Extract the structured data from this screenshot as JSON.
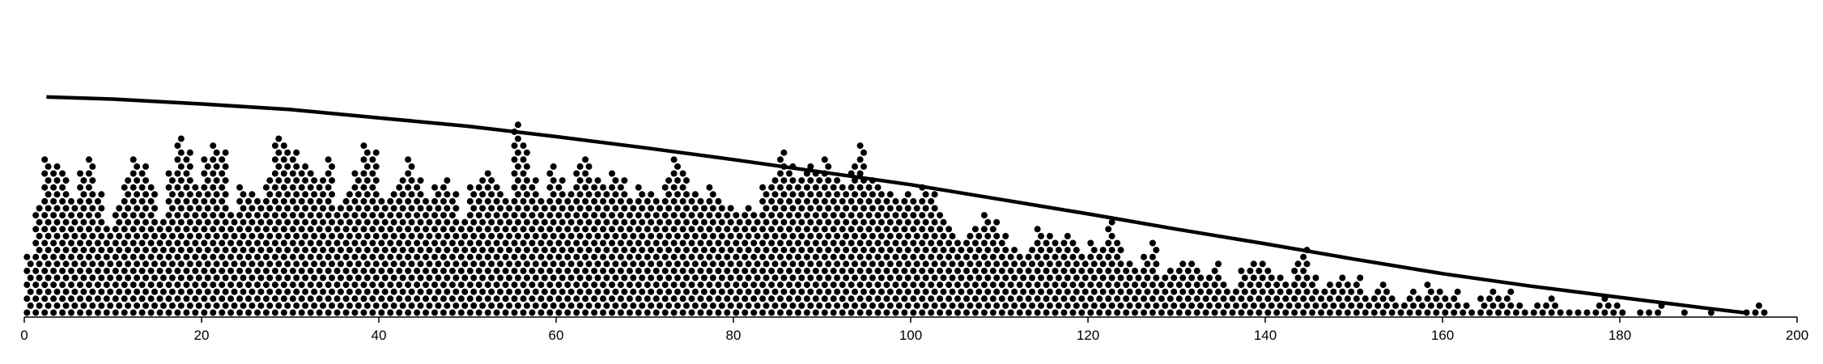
{
  "chart_data": {
    "type": "scatter",
    "title": "",
    "xlabel": "",
    "ylabel": "",
    "xlim": [
      0,
      200
    ],
    "grid": false,
    "legend": "none",
    "x_ticks": [
      "0",
      "20",
      "40",
      "60",
      "80",
      "100",
      "120",
      "140",
      "160",
      "180",
      "200"
    ],
    "x_tick_values": [
      0,
      20,
      40,
      60,
      80,
      100,
      120,
      140,
      160,
      180,
      200
    ],
    "series": [
      {
        "style": "stacked-dots",
        "color": "#000000",
        "column_heights": [
          [
            0.5,
            9
          ],
          [
            1.5,
            16
          ],
          [
            2.5,
            23
          ],
          [
            3.5,
            22
          ],
          [
            4.5,
            21
          ],
          [
            5.5,
            17
          ],
          [
            6.5,
            21
          ],
          [
            7.5,
            23
          ],
          [
            8.5,
            18
          ],
          [
            9.5,
            13
          ],
          [
            10.5,
            16
          ],
          [
            11.5,
            20
          ],
          [
            12.5,
            23
          ],
          [
            13.5,
            22
          ],
          [
            14.5,
            19
          ],
          [
            15.5,
            14
          ],
          [
            16.5,
            21
          ],
          [
            17.5,
            26
          ],
          [
            18.5,
            24
          ],
          [
            19.5,
            19
          ],
          [
            20.5,
            23
          ],
          [
            21.5,
            25
          ],
          [
            22.5,
            24
          ],
          [
            23.5,
            15
          ],
          [
            24.5,
            19
          ],
          [
            25.5,
            18
          ],
          [
            26.5,
            17
          ],
          [
            27.5,
            20
          ],
          [
            28.5,
            26
          ],
          [
            29.5,
            25
          ],
          [
            30.5,
            24
          ],
          [
            31.5,
            22
          ],
          [
            32.5,
            21
          ],
          [
            33.5,
            20
          ],
          [
            34.5,
            23
          ],
          [
            35.5,
            16
          ],
          [
            36.5,
            18
          ],
          [
            37.5,
            21
          ],
          [
            38.5,
            25
          ],
          [
            39.5,
            24
          ],
          [
            40.5,
            17
          ],
          [
            41.5,
            18
          ],
          [
            42.5,
            20
          ],
          [
            43.5,
            23
          ],
          [
            44.5,
            20
          ],
          [
            45.5,
            17
          ],
          [
            46.5,
            19
          ],
          [
            47.5,
            20
          ],
          [
            48.5,
            18
          ],
          [
            49.5,
            14
          ],
          [
            50.5,
            19
          ],
          [
            51.5,
            20
          ],
          [
            52.5,
            21
          ],
          [
            53.5,
            19
          ],
          [
            54.5,
            17
          ],
          [
            55.5,
            28
          ],
          [
            56.5,
            25
          ],
          [
            57.5,
            20
          ],
          [
            58.5,
            17
          ],
          [
            59.5,
            22
          ],
          [
            60.5,
            20
          ],
          [
            61.5,
            18
          ],
          [
            62.5,
            22
          ],
          [
            63.5,
            23
          ],
          [
            64.5,
            20
          ],
          [
            65.5,
            19
          ],
          [
            66.5,
            21
          ],
          [
            67.5,
            20
          ],
          [
            68.5,
            17
          ],
          [
            69.5,
            19
          ],
          [
            70.5,
            18
          ],
          [
            71.5,
            17
          ],
          [
            72.5,
            20
          ],
          [
            73.5,
            23
          ],
          [
            74.5,
            21
          ],
          [
            75.5,
            18
          ],
          [
            76.5,
            17
          ],
          [
            77.5,
            19
          ],
          [
            78.5,
            17
          ],
          [
            79.5,
            16
          ],
          [
            80.5,
            15
          ],
          [
            81.5,
            16
          ],
          [
            82.5,
            15
          ],
          [
            83.5,
            19
          ],
          [
            84.5,
            20
          ],
          [
            85.5,
            24
          ],
          [
            86.5,
            22
          ],
          [
            87.5,
            20
          ],
          [
            88.5,
            22
          ],
          [
            89.5,
            21
          ],
          [
            90.5,
            23
          ],
          [
            91.5,
            20
          ],
          [
            92.5,
            19
          ],
          [
            93.5,
            22
          ],
          [
            94.5,
            25
          ],
          [
            95.5,
            20
          ],
          [
            96.5,
            19
          ],
          [
            97.5,
            18
          ],
          [
            98.5,
            17
          ],
          [
            99.5,
            18
          ],
          [
            100.5,
            17
          ],
          [
            101.5,
            19
          ],
          [
            102.5,
            18
          ],
          [
            103.5,
            15
          ],
          [
            104.5,
            13
          ],
          [
            105.5,
            11
          ],
          [
            106.5,
            12
          ],
          [
            107.5,
            13
          ],
          [
            108.5,
            15
          ],
          [
            109.5,
            14
          ],
          [
            110.5,
            12
          ],
          [
            111.5,
            10
          ],
          [
            112.5,
            9
          ],
          [
            113.5,
            10
          ],
          [
            114.5,
            13
          ],
          [
            115.5,
            12
          ],
          [
            116.5,
            11
          ],
          [
            117.5,
            12
          ],
          [
            118.5,
            11
          ],
          [
            119.5,
            9
          ],
          [
            120.5,
            11
          ],
          [
            121.5,
            10
          ],
          [
            122.5,
            14
          ],
          [
            123.5,
            11
          ],
          [
            124.5,
            8
          ],
          [
            125.5,
            7
          ],
          [
            126.5,
            9
          ],
          [
            127.5,
            11
          ],
          [
            128.5,
            6
          ],
          [
            129.5,
            7
          ],
          [
            130.5,
            8
          ],
          [
            131.5,
            8
          ],
          [
            132.5,
            7
          ],
          [
            133.5,
            6
          ],
          [
            134.5,
            8
          ],
          [
            135.5,
            5
          ],
          [
            136.5,
            4
          ],
          [
            137.5,
            7
          ],
          [
            138.5,
            8
          ],
          [
            139.5,
            8
          ],
          [
            140.5,
            7
          ],
          [
            141.5,
            6
          ],
          [
            142.5,
            5
          ],
          [
            143.5,
            8
          ],
          [
            144.5,
            10
          ],
          [
            145.5,
            6
          ],
          [
            146.5,
            4
          ],
          [
            147.5,
            5
          ],
          [
            148.5,
            6
          ],
          [
            149.5,
            5
          ],
          [
            150.5,
            6
          ],
          [
            151.5,
            3
          ],
          [
            152.5,
            4
          ],
          [
            153.5,
            5
          ],
          [
            154.5,
            3
          ],
          [
            155.5,
            2
          ],
          [
            156.5,
            4
          ],
          [
            157.5,
            3
          ],
          [
            158.5,
            5
          ],
          [
            159.5,
            4
          ],
          [
            160.5,
            3
          ],
          [
            161.5,
            4
          ],
          [
            162.5,
            2
          ],
          [
            163.5,
            1
          ],
          [
            164.5,
            3
          ],
          [
            165.5,
            4
          ],
          [
            166.5,
            3
          ],
          [
            167.5,
            4
          ],
          [
            168.5,
            2
          ],
          [
            169.5,
            1
          ],
          [
            170.5,
            2
          ],
          [
            171.5,
            2
          ],
          [
            172.5,
            3
          ],
          [
            173.5,
            1
          ],
          [
            174.5,
            1
          ],
          [
            175.5,
            1
          ],
          [
            176.5,
            1
          ],
          [
            177.5,
            2
          ],
          [
            178.5,
            3
          ],
          [
            179.5,
            2
          ],
          [
            180.5,
            1
          ],
          [
            181.5,
            0
          ],
          [
            182.5,
            1
          ],
          [
            183.5,
            1
          ],
          [
            184.5,
            2
          ],
          [
            185.5,
            0
          ],
          [
            186.5,
            0
          ],
          [
            187.5,
            1
          ],
          [
            188.5,
            0
          ],
          [
            189.5,
            0
          ],
          [
            190.5,
            1
          ],
          [
            191.5,
            0
          ],
          [
            192.5,
            0
          ],
          [
            193.5,
            0
          ],
          [
            194.5,
            1
          ],
          [
            195.5,
            2
          ],
          [
            196.5,
            1
          ]
        ]
      },
      {
        "style": "line",
        "color": "#000000",
        "points": [
          [
            2.5,
            31
          ],
          [
            10,
            30.7
          ],
          [
            20,
            30
          ],
          [
            30,
            29.2
          ],
          [
            40,
            28
          ],
          [
            50,
            26.8
          ],
          [
            60,
            25.3
          ],
          [
            70,
            23.7
          ],
          [
            80,
            22
          ],
          [
            90,
            20.2
          ],
          [
            100,
            18.4
          ],
          [
            110,
            16.3
          ],
          [
            120,
            14.2
          ],
          [
            130,
            12
          ],
          [
            140,
            9.9
          ],
          [
            150,
            7.7
          ],
          [
            160,
            5.6
          ],
          [
            170,
            3.8
          ],
          [
            180,
            2.2
          ],
          [
            185,
            1.4
          ],
          [
            190,
            0.6
          ],
          [
            194,
            0
          ]
        ]
      }
    ]
  }
}
